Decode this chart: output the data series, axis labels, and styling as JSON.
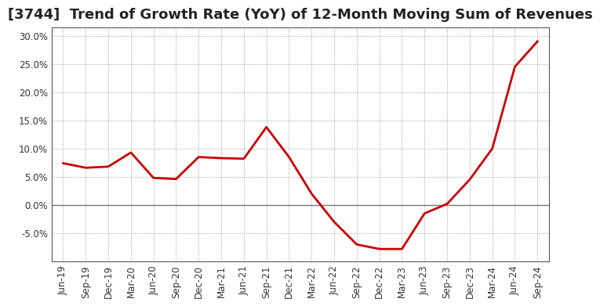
{
  "title": "[3744]  Trend of Growth Rate (YoY) of 12-Month Moving Sum of Revenues",
  "line_color": "#CC0000",
  "background_color": "#FFFFFF",
  "plot_bg_color": "#FFFFFF",
  "grid_color": "#999999",
  "border_color": "#555555",
  "ylim": [
    -0.1,
    0.315
  ],
  "yticks": [
    -0.05,
    0.0,
    0.05,
    0.1,
    0.15,
    0.2,
    0.25,
    0.3
  ],
  "x_labels": [
    "Jun-19",
    "Sep-19",
    "Dec-19",
    "Mar-20",
    "Jun-20",
    "Sep-20",
    "Dec-20",
    "Mar-21",
    "Jun-21",
    "Sep-21",
    "Dec-21",
    "Mar-22",
    "Jun-22",
    "Sep-22",
    "Dec-22",
    "Mar-23",
    "Jun-23",
    "Sep-23",
    "Dec-23",
    "Mar-24",
    "Jun-24",
    "Sep-24"
  ],
  "values": [
    0.074,
    0.066,
    0.068,
    0.093,
    0.048,
    0.046,
    0.085,
    0.083,
    0.082,
    0.138,
    0.085,
    0.02,
    -0.03,
    -0.07,
    -0.078,
    -0.078,
    -0.015,
    0.002,
    0.045,
    0.1,
    0.245,
    0.29
  ],
  "title_fontsize": 13,
  "tick_fontsize": 8.5
}
